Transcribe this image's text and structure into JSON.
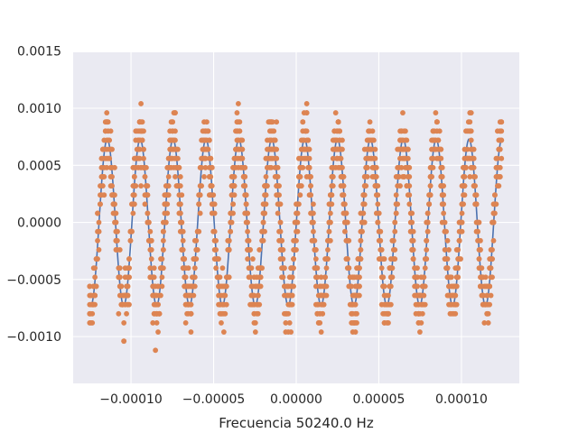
{
  "chart_data": {
    "type": "scatter",
    "title": "",
    "xlabel": "Frecuencia 50240.0 Hz",
    "ylabel": "",
    "xlim": [
      -0.000135,
      0.000135
    ],
    "ylim": [
      -0.00141,
      0.00149
    ],
    "x_ticks": [
      -0.0001,
      -5e-05,
      0.0,
      5e-05,
      0.0001
    ],
    "x_tick_labels": [
      "−0.00010",
      "−0.00005",
      "0.00000",
      "0.00005",
      "0.00010"
    ],
    "y_ticks": [
      -0.001,
      -0.0005,
      0.0,
      0.0005,
      0.001,
      0.0015
    ],
    "y_tick_labels": [
      "−0.0010",
      "−0.0005",
      "0.0000",
      "0.0005",
      "0.0010",
      "0.0015"
    ],
    "grid": true,
    "background": "#eaeaf2",
    "series": [
      {
        "kind": "line",
        "color": "#4c72b0",
        "model": {
          "amplitude": 0.00073,
          "frequency_hz": 50240.0,
          "phase_rad": -0.03
        },
        "x_range": [
          -0.000125,
          0.000125
        ]
      },
      {
        "kind": "scatter",
        "color": "#dd8452",
        "points_per_period": 25,
        "noise_step": 8e-05,
        "x_range": [
          -0.000125,
          0.000125
        ]
      }
    ]
  }
}
